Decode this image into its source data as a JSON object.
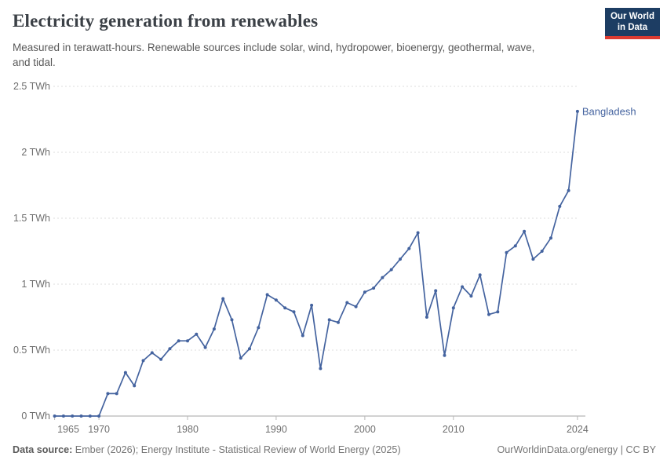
{
  "header": {
    "title": "Electricity generation from renewables",
    "subtitle": "Measured in terawatt-hours. Renewable sources include solar, wind, hydropower, bioenergy, geothermal, wave, and tidal.",
    "logo_line1": "Our World",
    "logo_line2": "in Data"
  },
  "colors": {
    "logo_background": "#1d3d63",
    "logo_accent_red": "#dc3b31",
    "series_blue": "#44639f",
    "gridline": "#dedede",
    "axis_line": "#a6a6a6",
    "tick_text": "#6e6e6e"
  },
  "chart_data": {
    "type": "line",
    "title": "Electricity generation from renewables",
    "unit": "TWh",
    "xlabel": "",
    "ylabel": "",
    "ylim": [
      0,
      2.5
    ],
    "xlim": [
      1965,
      2024
    ],
    "grid": "horizontal-dashed",
    "legend_position": "end-of-line-label",
    "yticks": [
      {
        "value": 0,
        "label": "0 TWh"
      },
      {
        "value": 0.5,
        "label": "0.5 TWh"
      },
      {
        "value": 1,
        "label": "1 TWh"
      },
      {
        "value": 1.5,
        "label": "1.5 TWh"
      },
      {
        "value": 2,
        "label": "2 TWh"
      },
      {
        "value": 2.5,
        "label": "2.5 TWh"
      }
    ],
    "xticks": [
      {
        "year": 1965,
        "label": "1965"
      },
      {
        "year": 1970,
        "label": "1970"
      },
      {
        "year": 1980,
        "label": "1980"
      },
      {
        "year": 1990,
        "label": "1990"
      },
      {
        "year": 2000,
        "label": "2000"
      },
      {
        "year": 2010,
        "label": "2010"
      },
      {
        "year": 2024,
        "label": "2024"
      }
    ],
    "series": [
      {
        "name": "Bangladesh",
        "color": "#44639f",
        "points": [
          [
            1965,
            0
          ],
          [
            1966,
            0
          ],
          [
            1967,
            0
          ],
          [
            1968,
            0
          ],
          [
            1969,
            0
          ],
          [
            1970,
            0
          ],
          [
            1971,
            0.17
          ],
          [
            1972,
            0.17
          ],
          [
            1973,
            0.33
          ],
          [
            1974,
            0.23
          ],
          [
            1975,
            0.42
          ],
          [
            1976,
            0.48
          ],
          [
            1977,
            0.43
          ],
          [
            1978,
            0.51
          ],
          [
            1979,
            0.57
          ],
          [
            1980,
            0.57
          ],
          [
            1981,
            0.62
          ],
          [
            1982,
            0.52
          ],
          [
            1983,
            0.66
          ],
          [
            1984,
            0.89
          ],
          [
            1985,
            0.73
          ],
          [
            1986,
            0.44
          ],
          [
            1987,
            0.51
          ],
          [
            1988,
            0.67
          ],
          [
            1989,
            0.92
          ],
          [
            1990,
            0.88
          ],
          [
            1991,
            0.82
          ],
          [
            1992,
            0.79
          ],
          [
            1993,
            0.61
          ],
          [
            1994,
            0.84
          ],
          [
            1995,
            0.36
          ],
          [
            1996,
            0.73
          ],
          [
            1997,
            0.71
          ],
          [
            1998,
            0.86
          ],
          [
            1999,
            0.83
          ],
          [
            2000,
            0.94
          ],
          [
            2001,
            0.97
          ],
          [
            2002,
            1.05
          ],
          [
            2003,
            1.11
          ],
          [
            2004,
            1.19
          ],
          [
            2005,
            1.27
          ],
          [
            2006,
            1.39
          ],
          [
            2007,
            0.75
          ],
          [
            2008,
            0.95
          ],
          [
            2009,
            0.46
          ],
          [
            2010,
            0.82
          ],
          [
            2011,
            0.98
          ],
          [
            2012,
            0.91
          ],
          [
            2013,
            1.07
          ],
          [
            2014,
            0.77
          ],
          [
            2015,
            0.79
          ],
          [
            2016,
            1.24
          ],
          [
            2017,
            1.29
          ],
          [
            2018,
            1.4
          ],
          [
            2019,
            1.19
          ],
          [
            2020,
            1.25
          ],
          [
            2021,
            1.35
          ],
          [
            2022,
            1.59
          ],
          [
            2023,
            1.71
          ],
          [
            2024,
            2.31
          ]
        ]
      }
    ]
  },
  "footer": {
    "source_label": "Data source:",
    "source_text": " Ember (2026); Energy Institute - Statistical Review of World Energy (2025)",
    "right": "OurWorldinData.org/energy | CC BY"
  }
}
